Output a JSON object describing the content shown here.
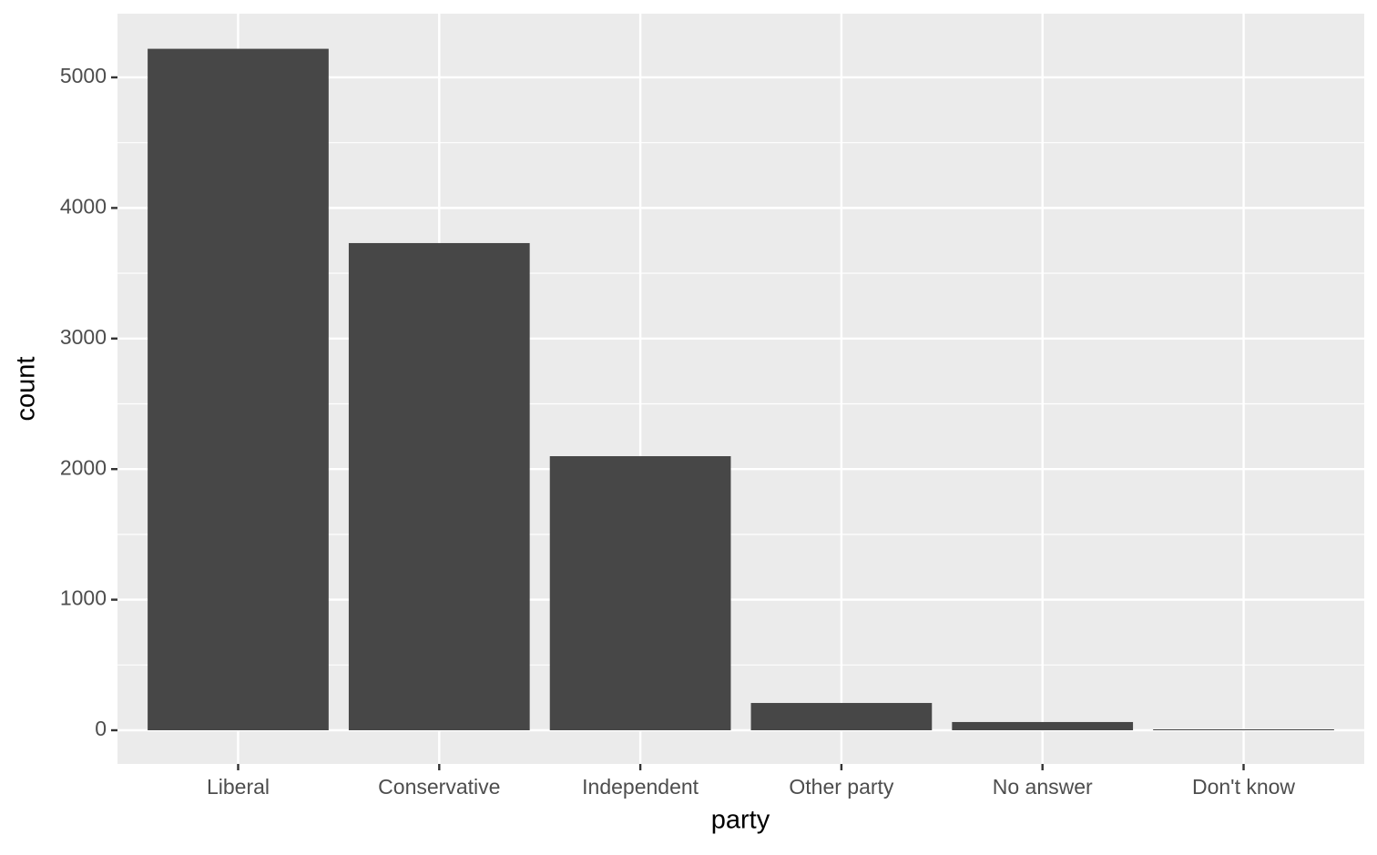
{
  "chart_data": {
    "type": "bar",
    "x_label": "party",
    "y_label": "count",
    "categories": [
      "Liberal",
      "Conservative",
      "Independent",
      "Other party",
      "No answer",
      "Don't know"
    ],
    "values": [
      5219,
      3731,
      2099,
      209,
      63,
      7
    ],
    "color": "#474747",
    "ylim": [
      -258,
      5488
    ],
    "yticks": [
      0,
      1000,
      2000,
      3000,
      4000,
      5000
    ],
    "minor_yticks": [
      500,
      1500,
      2500,
      3500,
      4500
    ],
    "grid": true
  }
}
